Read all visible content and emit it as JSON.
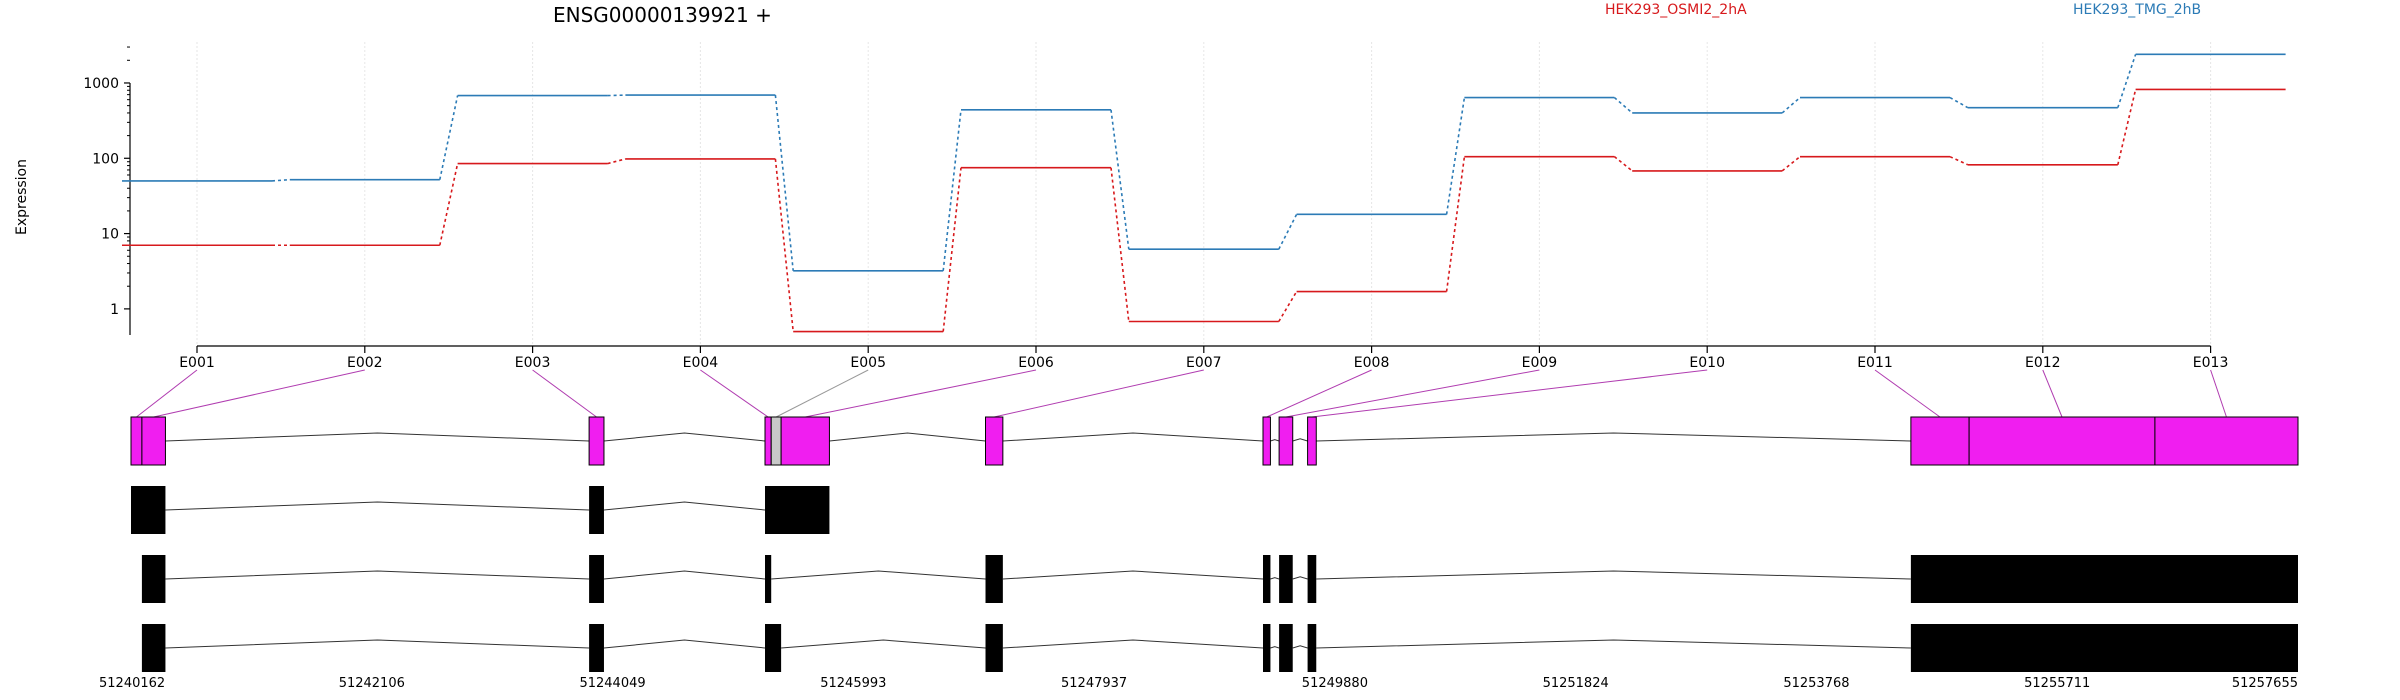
{
  "chart_data": {
    "type": "line",
    "title": "ENSG00000139921 +",
    "ylabel": "Expression",
    "xlabel": "",
    "y_scale": "log",
    "ylim": [
      0.45,
      3500
    ],
    "yticks": [
      1,
      10,
      100,
      1000
    ],
    "ytick_labels": [
      "1",
      "10",
      "100",
      "1000"
    ],
    "grid": "vertical dotted lines at exon centers",
    "legend": "top, above plot",
    "categories": [
      "E001",
      "E002",
      "E003",
      "E004",
      "E005",
      "E006",
      "E007",
      "E008",
      "E009",
      "E010",
      "E011",
      "E012",
      "E013"
    ],
    "series": [
      {
        "name": "HEK293_OSMI2_2hA",
        "color": "#d7191c",
        "values": [
          7,
          7,
          85,
          98,
          0.5,
          75,
          0.68,
          1.7,
          105,
          68,
          105,
          82,
          820
        ]
      },
      {
        "name": "HEK293_TMG_2hB",
        "color": "#2c7bb6",
        "values": [
          50,
          52,
          680,
          690,
          3.2,
          440,
          6.2,
          18,
          640,
          400,
          640,
          470,
          2400
        ]
      }
    ],
    "gene_model": {
      "coordinate_labels": [
        "51240162",
        "51242106",
        "51244049",
        "51245993",
        "51247937",
        "51249880",
        "51251824",
        "51253768",
        "51255711",
        "51257655"
      ],
      "coordinate_range": [
        51240162,
        51257655
      ],
      "exon_color": "#f01ef0",
      "transcript_color": "#000000",
      "exon_bins": [
        [
          51240162,
          51240250
        ],
        [
          51240250,
          51240440
        ],
        [
          51243860,
          51243980
        ],
        [
          51245280,
          51245330
        ],
        [
          51245330,
          51245410
        ],
        [
          51245410,
          51245800
        ],
        [
          51247060,
          51247200
        ],
        [
          51249300,
          51249360
        ],
        [
          51249430,
          51249540
        ],
        [
          51249660,
          51249730
        ],
        [
          51254530,
          51255000
        ],
        [
          51255000,
          51256500
        ],
        [
          51256500,
          51257655
        ]
      ],
      "bin_colors": [
        "#f01ef0",
        "#f01ef0",
        "#f01ef0",
        "#f01ef0",
        "#c8c8c8",
        "#f01ef0",
        "#f01ef0",
        "#f01ef0",
        "#f01ef0",
        "#f01ef0",
        "#f01ef0",
        "#f01ef0",
        "#f01ef0"
      ],
      "transcripts": [
        [
          [
            51240162,
            51240440
          ],
          [
            51243860,
            51243980
          ],
          [
            51245280,
            51245800
          ],
          [
            51247060,
            51247200
          ],
          [
            51249300,
            51249360
          ],
          [
            51249430,
            51249540
          ],
          [
            51249660,
            51249730
          ],
          [
            51254530,
            51257655
          ]
        ],
        [
          [
            51240162,
            51240440
          ],
          [
            51243860,
            51243980
          ],
          [
            51245280,
            51245800
          ]
        ],
        [
          [
            51240250,
            51240440
          ],
          [
            51243860,
            51243980
          ],
          [
            51245280,
            51245330
          ],
          [
            51247060,
            51247200
          ],
          [
            51249300,
            51249360
          ],
          [
            51249430,
            51249540
          ],
          [
            51249660,
            51249730
          ],
          [
            51254530,
            51257655
          ]
        ],
        [
          [
            51240250,
            51240440
          ],
          [
            51243860,
            51243980
          ],
          [
            51245280,
            51245410
          ],
          [
            51247060,
            51247200
          ],
          [
            51249300,
            51249360
          ],
          [
            51249430,
            51249540
          ],
          [
            51249660,
            51249730
          ],
          [
            51254530,
            51257655
          ]
        ]
      ]
    }
  }
}
